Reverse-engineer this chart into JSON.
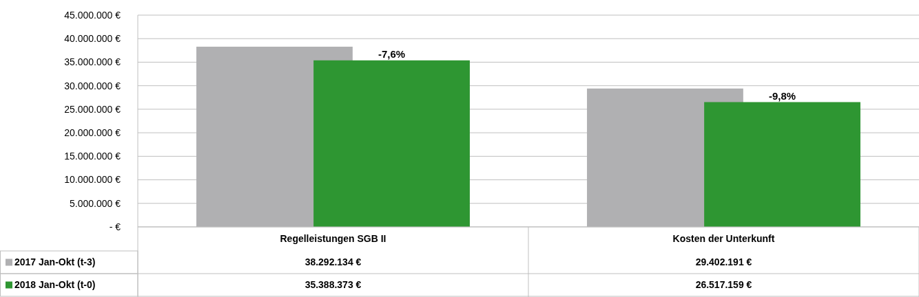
{
  "chart_data": {
    "type": "bar",
    "categories": [
      "Regelleistungen SGB II",
      "Kosten der Unterkunft"
    ],
    "series": [
      {
        "name": "2017 Jan-Okt (t-3)",
        "color": "#b0b0b2",
        "values": [
          38292134,
          29402191
        ],
        "value_labels": [
          "38.292.134 €",
          "29.402.191 €"
        ]
      },
      {
        "name": "2018 Jan-Okt (t-0)",
        "color": "#2e9632",
        "values": [
          35388373,
          26517159
        ],
        "value_labels": [
          "35.388.373 €",
          "26.517.159 €"
        ]
      }
    ],
    "ylim": [
      0,
      45000000
    ],
    "yticks": [
      {
        "value": 0,
        "label": "- €"
      },
      {
        "value": 5000000,
        "label": "5.000.000 €"
      },
      {
        "value": 10000000,
        "label": "10.000.000 €"
      },
      {
        "value": 15000000,
        "label": "15.000.000 €"
      },
      {
        "value": 20000000,
        "label": "20.000.000 €"
      },
      {
        "value": 25000000,
        "label": "25.000.000 €"
      },
      {
        "value": 30000000,
        "label": "30.000.000 €"
      },
      {
        "value": 35000000,
        "label": "35.000.000 €"
      },
      {
        "value": 40000000,
        "label": "40.000.000 €"
      },
      {
        "value": 45000000,
        "label": "45.000.000 €"
      }
    ],
    "grid": "y",
    "legend": "bottom left",
    "annotations": [
      "-7,6%",
      "-9,8%"
    ]
  }
}
